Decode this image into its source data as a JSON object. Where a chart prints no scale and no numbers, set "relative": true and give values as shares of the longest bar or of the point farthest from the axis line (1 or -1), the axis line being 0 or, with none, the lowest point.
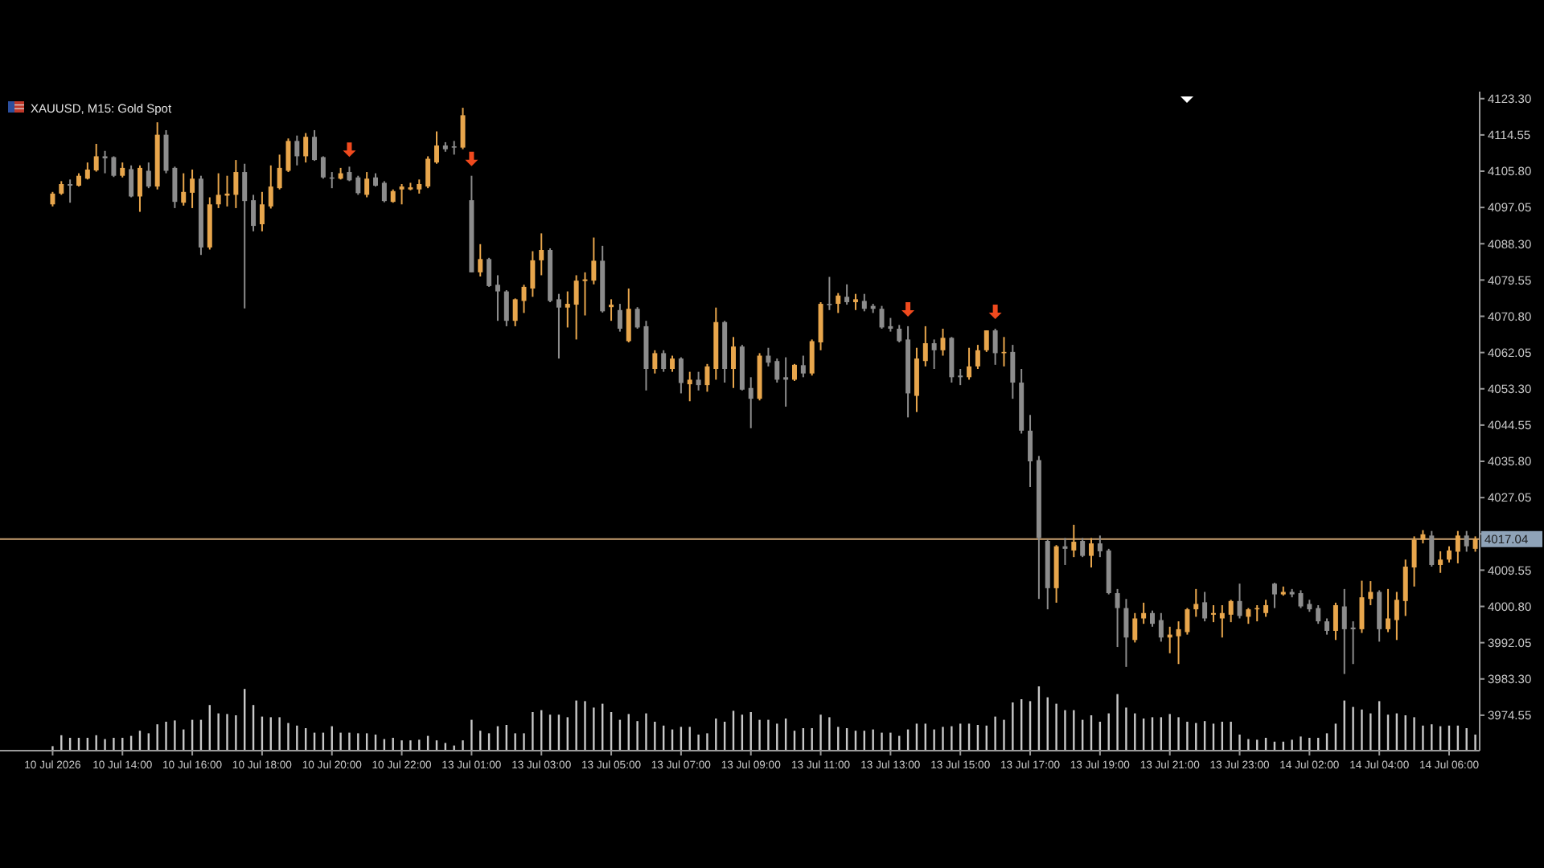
{
  "chart_data": [
    {
      "type": "candlestick",
      "title": "XAUUSD, M15: Gold Spot",
      "categories": [
        "10 Jul 2026",
        null,
        null,
        null,
        null,
        null,
        null,
        null,
        "10 Jul 14:00",
        null,
        null,
        null,
        null,
        null,
        null,
        null,
        "10 Jul 16:00",
        null,
        null,
        null,
        null,
        null,
        null,
        null,
        "10 Jul 18:00",
        null,
        null,
        null,
        null,
        null,
        null,
        null,
        "10 Jul 20:00",
        null,
        null,
        null,
        null,
        null,
        null,
        null,
        "10 Jul 22:00",
        null,
        null,
        null,
        null,
        null,
        null,
        null,
        "13 Jul 01:00",
        null,
        null,
        null,
        null,
        null,
        null,
        null,
        "13 Jul 03:00",
        null,
        null,
        null,
        null,
        null,
        null,
        null,
        "13 Jul 05:00",
        null,
        null,
        null,
        null,
        null,
        null,
        null,
        "13 Jul 07:00",
        null,
        null,
        null,
        null,
        null,
        null,
        null,
        "13 Jul 09:00",
        null,
        null,
        null,
        null,
        null,
        null,
        null,
        "13 Jul 11:00",
        null,
        null,
        null,
        null,
        null,
        null,
        null,
        "13 Jul 13:00",
        null,
        null,
        null,
        null,
        null,
        null,
        null,
        "13 Jul 15:00",
        null,
        null,
        null,
        null,
        null,
        null,
        null,
        "13 Jul 17:00",
        null,
        null,
        null,
        null,
        null,
        null,
        null,
        "13 Jul 19:00",
        null,
        null,
        null,
        null,
        null,
        null,
        null,
        "13 Jul 21:00",
        null,
        null,
        null,
        null,
        null,
        null,
        null,
        "13 Jul 23:00",
        null,
        null,
        null,
        null,
        null,
        null,
        null,
        "14 Jul 02:00",
        null,
        null,
        null,
        null,
        null,
        null,
        null,
        "14 Jul 04:00",
        null,
        null,
        null,
        null,
        null,
        null,
        null,
        "14 Jul 06:00",
        null,
        null,
        null
      ],
      "ohlc": [
        [
          4097.8,
          4100.8,
          4097.3,
          4100.4
        ],
        [
          4100.4,
          4103.4,
          4100.1,
          4102.7
        ],
        [
          4102.7,
          4103.8,
          4098.2,
          4102.3
        ],
        [
          4102.3,
          4105.3,
          4102.1,
          4104.7
        ],
        [
          4104.0,
          4107.9,
          4103.8,
          4106.2
        ],
        [
          4106.0,
          4112.4,
          4105.7,
          4109.4
        ],
        [
          4109.4,
          4110.7,
          4105.3,
          4108.9
        ],
        [
          4109.2,
          4109.4,
          4104.4,
          4104.7
        ],
        [
          4104.7,
          4107.9,
          4104.3,
          4106.6
        ],
        [
          4106.3,
          4107.2,
          4099.5,
          4099.7
        ],
        [
          4099.7,
          4107.2,
          4096.0,
          4106.6
        ],
        [
          4105.9,
          4107.9,
          4101.7,
          4102.1
        ],
        [
          4102.1,
          4117.6,
          4101.4,
          4114.6
        ],
        [
          4114.6,
          4115.7,
          4105.3,
          4105.9
        ],
        [
          4106.6,
          4106.9,
          4096.9,
          4098.4
        ],
        [
          4098.2,
          4105.3,
          4097.5,
          4100.8
        ],
        [
          4100.6,
          4106.2,
          4096.9,
          4104.0
        ],
        [
          4104.0,
          4104.7,
          4085.6,
          4087.4
        ],
        [
          4087.4,
          4099.5,
          4086.9,
          4097.8
        ],
        [
          4097.8,
          4105.3,
          4096.9,
          4100.1
        ],
        [
          4099.9,
          4104.7,
          4097.3,
          4100.4
        ],
        [
          4100.1,
          4108.5,
          4096.9,
          4105.6
        ],
        [
          4105.6,
          4107.6,
          4072.7,
          4098.6
        ],
        [
          4098.8,
          4100.1,
          4091.3,
          4092.6
        ],
        [
          4093.0,
          4100.8,
          4091.3,
          4097.8
        ],
        [
          4097.3,
          4107.2,
          4096.8,
          4102.1
        ],
        [
          4101.7,
          4109.8,
          4101.4,
          4106.6
        ],
        [
          4105.9,
          4113.7,
          4105.6,
          4113.1
        ],
        [
          4113.1,
          4114.4,
          4107.2,
          4109.4
        ],
        [
          4109.4,
          4115.0,
          4107.9,
          4114.1
        ],
        [
          4114.1,
          4115.7,
          4108.3,
          4108.5
        ],
        [
          4109.2,
          4109.4,
          4104.0,
          4104.3
        ],
        [
          4104.3,
          4105.6,
          4101.7,
          4104.0
        ],
        [
          4104.0,
          4106.6,
          4103.8,
          4105.3
        ],
        [
          4105.6,
          4106.9,
          4103.4,
          4103.6
        ],
        [
          4104.3,
          4104.7,
          4100.1,
          4100.5
        ],
        [
          4100.1,
          4105.6,
          4099.5,
          4104.0
        ],
        [
          4104.3,
          4105.3,
          4102.1,
          4102.3
        ],
        [
          4103.0,
          4103.4,
          4098.3,
          4098.6
        ],
        [
          4098.4,
          4101.4,
          4098.2,
          4101.0
        ],
        [
          4101.4,
          4102.7,
          4097.8,
          4102.1
        ],
        [
          4101.4,
          4103.0,
          4101.2,
          4101.9
        ],
        [
          4101.4,
          4103.8,
          4100.4,
          4102.7
        ],
        [
          4102.1,
          4109.4,
          4101.7,
          4108.8
        ],
        [
          4107.9,
          4115.4,
          4107.6,
          4112.0
        ],
        [
          4112.0,
          4112.8,
          4110.5,
          4111.1
        ],
        [
          4111.8,
          4113.1,
          4109.8,
          4111.5
        ],
        [
          4111.5,
          4121.1,
          4111.1,
          4119.3
        ],
        [
          4098.8,
          4104.7,
          4081.4,
          4081.4
        ],
        [
          4081.4,
          4088.2,
          4080.4,
          4084.6
        ],
        [
          4084.6,
          4084.9,
          4077.9,
          4078.1
        ],
        [
          4078.4,
          4080.7,
          4069.7,
          4076.8
        ],
        [
          4076.8,
          4077.1,
          4068.4,
          4069.7
        ],
        [
          4069.7,
          4075.1,
          4068.4,
          4074.9
        ],
        [
          4074.5,
          4078.4,
          4071.6,
          4077.9
        ],
        [
          4077.5,
          4086.5,
          4075.5,
          4084.3
        ],
        [
          4084.3,
          4090.8,
          4080.7,
          4086.8
        ],
        [
          4086.8,
          4087.2,
          4074.2,
          4074.5
        ],
        [
          4074.9,
          4076.2,
          4060.6,
          4072.9
        ],
        [
          4072.9,
          4076.8,
          4068.1,
          4073.8
        ],
        [
          4073.6,
          4080.7,
          4065.2,
          4079.4
        ],
        [
          4079.3,
          4081.4,
          4071.0,
          4079.7
        ],
        [
          4079.4,
          4089.8,
          4078.5,
          4084.2
        ],
        [
          4084.2,
          4087.8,
          4071.7,
          4072.0
        ],
        [
          4073.0,
          4074.9,
          4069.7,
          4073.6
        ],
        [
          4072.3,
          4073.8,
          4067.1,
          4067.8
        ],
        [
          4064.8,
          4077.5,
          4064.5,
          4072.6
        ],
        [
          4072.6,
          4073.0,
          4067.8,
          4068.1
        ],
        [
          4068.4,
          4069.7,
          4052.9,
          4058.1
        ],
        [
          4058.1,
          4062.6,
          4057.0,
          4061.9
        ],
        [
          4061.9,
          4062.6,
          4057.4,
          4058.1
        ],
        [
          4058.1,
          4061.3,
          4057.4,
          4060.6
        ],
        [
          4060.6,
          4060.9,
          4052.2,
          4054.7
        ],
        [
          4054.4,
          4057.4,
          4050.3,
          4055.5
        ],
        [
          4055.5,
          4057.4,
          4052.9,
          4054.2
        ],
        [
          4054.2,
          4059.3,
          4052.6,
          4058.7
        ],
        [
          4058.1,
          4072.9,
          4055.5,
          4069.4
        ],
        [
          4069.4,
          4069.7,
          4054.8,
          4058.1
        ],
        [
          4058.1,
          4065.8,
          4053.5,
          4063.5
        ],
        [
          4063.5,
          4063.9,
          4052.9,
          4053.1
        ],
        [
          4053.5,
          4056.1,
          4043.8,
          4050.9
        ],
        [
          4050.9,
          4061.9,
          4050.5,
          4061.3
        ],
        [
          4061.3,
          4063.2,
          4058.7,
          4059.6
        ],
        [
          4060.0,
          4060.6,
          4054.8,
          4055.5
        ],
        [
          4056.1,
          4060.9,
          4049.0,
          4055.5
        ],
        [
          4055.5,
          4059.3,
          4055.2,
          4059.1
        ],
        [
          4059.0,
          4061.3,
          4056.1,
          4057.0
        ],
        [
          4057.0,
          4065.2,
          4056.5,
          4064.8
        ],
        [
          4064.5,
          4074.2,
          4062.6,
          4073.8
        ],
        [
          4073.8,
          4080.3,
          4072.3,
          4073.6
        ],
        [
          4073.8,
          4076.4,
          4071.6,
          4075.8
        ],
        [
          4075.5,
          4078.5,
          4073.6,
          4074.2
        ],
        [
          4074.2,
          4076.2,
          4072.3,
          4074.9
        ],
        [
          4074.5,
          4076.2,
          4072.0,
          4072.6
        ],
        [
          4073.3,
          4073.8,
          4071.6,
          4072.6
        ],
        [
          4072.6,
          4073.3,
          4067.8,
          4068.1
        ],
        [
          4068.4,
          4070.4,
          4067.1,
          4067.8
        ],
        [
          4067.8,
          4068.7,
          4064.5,
          4064.8
        ],
        [
          4065.2,
          4068.4,
          4046.4,
          4052.2
        ],
        [
          4051.6,
          4063.2,
          4047.7,
          4060.6
        ],
        [
          4060.0,
          4068.4,
          4058.7,
          4064.3
        ],
        [
          4064.3,
          4065.2,
          4058.1,
          4062.6
        ],
        [
          4062.6,
          4067.8,
          4061.3,
          4065.6
        ],
        [
          4065.6,
          4065.8,
          4054.8,
          4056.1
        ],
        [
          4056.5,
          4058.1,
          4054.2,
          4056.1
        ],
        [
          4056.1,
          4063.2,
          4055.5,
          4058.7
        ],
        [
          4058.7,
          4063.9,
          4058.1,
          4062.6
        ],
        [
          4062.6,
          4067.4,
          4062.2,
          4067.4
        ],
        [
          4067.4,
          4067.8,
          4059.1,
          4061.9
        ],
        [
          4061.9,
          4065.8,
          4058.7,
          4062.2
        ],
        [
          4062.2,
          4063.9,
          4050.9,
          4054.8
        ],
        [
          4054.8,
          4058.1,
          4042.5,
          4043.2
        ],
        [
          4043.2,
          4047.0,
          4029.6,
          4035.8
        ],
        [
          4036.1,
          4037.1,
          4002.6,
          4017.3
        ],
        [
          4016.6,
          4016.9,
          4000.1,
          4005.2
        ],
        [
          4005.2,
          4015.6,
          4001.7,
          4015.3
        ],
        [
          4015.3,
          4017.3,
          4010.8,
          4014.7
        ],
        [
          4014.3,
          4020.5,
          4012.7,
          4016.4
        ],
        [
          4016.6,
          4017.3,
          4012.7,
          4013.0
        ],
        [
          4013.0,
          4017.3,
          4010.2,
          4016.0
        ],
        [
          4016.0,
          4017.9,
          4012.7,
          4014.1
        ],
        [
          4014.3,
          4014.7,
          4003.7,
          4004.0
        ],
        [
          4004.0,
          4005.0,
          3991.0,
          4000.4
        ],
        [
          4000.4,
          4002.6,
          3986.2,
          3993.3
        ],
        [
          3992.7,
          3999.2,
          3992.1,
          3997.9
        ],
        [
          3997.9,
          4001.7,
          3996.6,
          3999.2
        ],
        [
          3999.2,
          3999.8,
          3995.9,
          3996.6
        ],
        [
          3997.5,
          3999.2,
          3992.3,
          3993.3
        ],
        [
          3993.3,
          3995.9,
          3989.5,
          3994.0
        ],
        [
          3993.6,
          3997.2,
          3986.9,
          3995.3
        ],
        [
          3994.6,
          4000.4,
          3994.0,
          4000.1
        ],
        [
          4000.1,
          4005.0,
          3998.3,
          4001.4
        ],
        [
          4001.8,
          4004.3,
          3997.2,
          3997.9
        ],
        [
          3998.8,
          4001.1,
          3997.0,
          3999.2
        ],
        [
          3997.9,
          4001.1,
          3993.3,
          3999.2
        ],
        [
          3998.8,
          4002.4,
          3997.0,
          4002.1
        ],
        [
          4002.1,
          4006.3,
          3997.9,
          3998.5
        ],
        [
          3998.3,
          4000.4,
          3996.6,
          4000.1
        ],
        [
          4000.1,
          4001.1,
          3997.2,
          4000.4
        ],
        [
          3999.2,
          4002.4,
          3998.3,
          4001.1
        ],
        [
          4006.3,
          4006.5,
          4000.4,
          4003.7
        ],
        [
          4003.7,
          4005.6,
          4003.4,
          4004.3
        ],
        [
          4004.3,
          4005.0,
          4003.0,
          4003.7
        ],
        [
          4004.0,
          4004.7,
          4000.4,
          4000.8
        ],
        [
          4001.4,
          4002.4,
          3999.5,
          4000.1
        ],
        [
          4000.4,
          4001.1,
          3996.6,
          3997.2
        ],
        [
          3997.2,
          3997.9,
          3994.0,
          3994.9
        ],
        [
          3994.9,
          4001.7,
          3992.7,
          4001.1
        ],
        [
          4000.8,
          4005.0,
          3984.5,
          3995.3
        ],
        [
          3995.7,
          3997.2,
          3986.9,
          3995.3
        ],
        [
          3995.3,
          4007.0,
          3994.4,
          4003.0
        ],
        [
          4002.6,
          4006.9,
          4001.1,
          4004.3
        ],
        [
          4004.3,
          4004.7,
          3992.3,
          3995.3
        ],
        [
          3995.3,
          4005.0,
          3994.6,
          3997.9
        ],
        [
          3997.5,
          4004.3,
          3992.7,
          4002.4
        ],
        [
          4002.1,
          4012.1,
          3998.5,
          4010.4
        ],
        [
          4010.2,
          4017.7,
          4005.6,
          4016.9
        ],
        [
          4016.9,
          4019.2,
          4016.0,
          4018.2
        ],
        [
          4017.9,
          4019.0,
          4010.4,
          4010.8
        ],
        [
          4010.8,
          4014.1,
          4008.9,
          4012.1
        ],
        [
          4012.1,
          4015.3,
          4011.4,
          4014.3
        ],
        [
          4014.0,
          4019.0,
          4011.2,
          4017.9
        ],
        [
          4017.9,
          4019.0,
          4014.0,
          4015.3
        ],
        [
          4014.7,
          4017.7,
          4014.0,
          4017.0
        ]
      ],
      "colors": [
        "#e8a64c",
        "#e8a64c",
        "#8c8c8c",
        "#e8a64c",
        "#e8a64c",
        "#e8a64c",
        "#8c8c8c",
        "#8c8c8c",
        "#e8a64c",
        "#8c8c8c",
        "#e8a64c",
        "#8c8c8c",
        "#e8a64c",
        "#8c8c8c",
        "#8c8c8c",
        "#e8a64c",
        "#e8a64c",
        "#8c8c8c",
        "#e8a64c",
        "#e8a64c",
        "#e8a64c",
        "#e8a64c",
        "#8c8c8c",
        "#8c8c8c",
        "#e8a64c",
        "#e8a64c",
        "#e8a64c",
        "#e8a64c",
        "#8c8c8c",
        "#e8a64c",
        "#8c8c8c",
        "#8c8c8c",
        "#8c8c8c",
        "#e8a64c",
        "#8c8c8c",
        "#8c8c8c",
        "#e8a64c",
        "#8c8c8c",
        "#8c8c8c",
        "#e8a64c",
        "#e8a64c",
        "#e8a64c",
        "#e8a64c",
        "#e8a64c",
        "#e8a64c",
        "#8c8c8c",
        "#8c8c8c",
        "#e8a64c",
        "#8c8c8c",
        "#e8a64c",
        "#8c8c8c",
        "#8c8c8c",
        "#8c8c8c",
        "#e8a64c",
        "#e8a64c",
        "#e8a64c",
        "#e8a64c",
        "#8c8c8c",
        "#8c8c8c",
        "#e8a64c",
        "#e8a64c",
        "#e8a64c",
        "#e8a64c",
        "#8c8c8c",
        "#e8a64c",
        "#8c8c8c",
        "#e8a64c",
        "#8c8c8c",
        "#8c8c8c",
        "#e8a64c",
        "#8c8c8c",
        "#e8a64c",
        "#8c8c8c",
        "#e8a64c",
        "#8c8c8c",
        "#e8a64c",
        "#e8a64c",
        "#8c8c8c",
        "#e8a64c",
        "#8c8c8c",
        "#8c8c8c",
        "#e8a64c",
        "#8c8c8c",
        "#8c8c8c",
        "#8c8c8c",
        "#e8a64c",
        "#8c8c8c",
        "#e8a64c",
        "#e8a64c",
        "#8c8c8c",
        "#e8a64c",
        "#8c8c8c",
        "#e8a64c",
        "#8c8c8c",
        "#8c8c8c",
        "#8c8c8c",
        "#8c8c8c",
        "#8c8c8c",
        "#8c8c8c",
        "#e8a64c",
        "#e8a64c",
        "#8c8c8c",
        "#e8a64c",
        "#8c8c8c",
        "#8c8c8c",
        "#e8a64c",
        "#e8a64c",
        "#e8a64c",
        "#8c8c8c",
        "#e8a64c",
        "#8c8c8c",
        "#8c8c8c",
        "#8c8c8c",
        "#8c8c8c",
        "#8c8c8c",
        "#e8a64c",
        "#8c8c8c",
        "#e8a64c",
        "#8c8c8c",
        "#e8a64c",
        "#8c8c8c",
        "#8c8c8c",
        "#8c8c8c",
        "#8c8c8c",
        "#e8a64c",
        "#e8a64c",
        "#8c8c8c",
        "#8c8c8c",
        "#e8a64c",
        "#e8a64c",
        "#e8a64c",
        "#e8a64c",
        "#8c8c8c",
        "#e8a64c",
        "#e8a64c",
        "#e8a64c",
        "#8c8c8c",
        "#e8a64c",
        "#e8a64c",
        "#e8a64c",
        "#8c8c8c",
        "#e8a64c",
        "#8c8c8c",
        "#8c8c8c",
        "#8c8c8c",
        "#8c8c8c",
        "#8c8c8c",
        "#e8a64c",
        "#8c8c8c",
        "#8c8c8c",
        "#e8a64c",
        "#e8a64c",
        "#8c8c8c",
        "#e8a64c",
        "#e8a64c",
        "#e8a64c",
        "#e8a64c",
        "#e8a64c",
        "#8c8c8c",
        "#e8a64c",
        "#e8a64c",
        "#e8a64c",
        "#8c8c8c",
        "#e8a64c"
      ],
      "ylim": [
        3966,
        4125
      ],
      "yticks": [
        {
          "value": 4123.3,
          "label": "4123.30"
        },
        {
          "value": 4114.55,
          "label": "4114.55"
        },
        {
          "value": 4105.8,
          "label": "4105.80"
        },
        {
          "value": 4097.05,
          "label": "4097.05"
        },
        {
          "value": 4088.3,
          "label": "4088.30"
        },
        {
          "value": 4079.55,
          "label": "4079.55"
        },
        {
          "value": 4070.8,
          "label": "4070.80"
        },
        {
          "value": 4062.05,
          "label": "4062.05"
        },
        {
          "value": 4053.3,
          "label": "4053.30"
        },
        {
          "value": 4044.55,
          "label": "4044.55"
        },
        {
          "value": 4035.8,
          "label": "4035.80"
        },
        {
          "value": 4027.05,
          "label": "4027.05"
        },
        {
          "value": 4018.3,
          "label": null
        },
        {
          "value": 4009.55,
          "label": "4009.55"
        },
        {
          "value": 4000.8,
          "label": "4000.80"
        },
        {
          "value": 3992.05,
          "label": "3992.05"
        },
        {
          "value": 3983.3,
          "label": "3983.30"
        },
        {
          "value": 3974.55,
          "label": "3974.55"
        }
      ],
      "ref_lines": [
        {
          "axis": "y",
          "value": 4017.04,
          "label": "4017.04",
          "color": "#c8a070"
        }
      ]
    },
    {
      "type": "bar",
      "relative": true,
      "color": "#c8c8c8",
      "categories": [
        null,
        null,
        null,
        null,
        null,
        null,
        null,
        null,
        null,
        null,
        null,
        null,
        null,
        null,
        null,
        null,
        null,
        null,
        null,
        null,
        null,
        null,
        null,
        null,
        null,
        null,
        null,
        null,
        null,
        null,
        null,
        null,
        null,
        null,
        null,
        null,
        null,
        null,
        null,
        null,
        null,
        null,
        null,
        null,
        null,
        null,
        null,
        null,
        null,
        null,
        null,
        null,
        null,
        null,
        null,
        null,
        null,
        null,
        null,
        null,
        null,
        null,
        null,
        null,
        null,
        null,
        null,
        null,
        null,
        null,
        null,
        null,
        null,
        null,
        null,
        null,
        null,
        null,
        null,
        null,
        null,
        null,
        null,
        null,
        null,
        null,
        null,
        null,
        null,
        null,
        null,
        null,
        null,
        null,
        null,
        null,
        null,
        null,
        null,
        null,
        null,
        null,
        null,
        null,
        null,
        null,
        null,
        null,
        null,
        null,
        null,
        null,
        null,
        null,
        null,
        null,
        null,
        null,
        null,
        null,
        null,
        null,
        null,
        null,
        null,
        null,
        null,
        null,
        null,
        null,
        null,
        null,
        null,
        null,
        null,
        null,
        null,
        null,
        null,
        null,
        null,
        null,
        null,
        null,
        null,
        null,
        null,
        null,
        null,
        null,
        null,
        null,
        null,
        null,
        null,
        null,
        null,
        null,
        null,
        null,
        null,
        null,
        null,
        null
      ],
      "values": [
        0.07,
        0.24,
        0.2,
        0.2,
        0.2,
        0.24,
        0.18,
        0.2,
        0.2,
        0.23,
        0.31,
        0.27,
        0.41,
        0.45,
        0.47,
        0.33,
        0.48,
        0.48,
        0.71,
        0.58,
        0.57,
        0.55,
        0.96,
        0.71,
        0.53,
        0.52,
        0.52,
        0.43,
        0.39,
        0.35,
        0.28,
        0.28,
        0.38,
        0.28,
        0.28,
        0.27,
        0.27,
        0.25,
        0.18,
        0.2,
        0.16,
        0.16,
        0.17,
        0.23,
        0.16,
        0.12,
        0.08,
        0.16,
        0.48,
        0.31,
        0.27,
        0.38,
        0.4,
        0.27,
        0.27,
        0.6,
        0.63,
        0.56,
        0.56,
        0.52,
        0.78,
        0.77,
        0.67,
        0.73,
        0.6,
        0.48,
        0.57,
        0.46,
        0.58,
        0.45,
        0.39,
        0.33,
        0.37,
        0.37,
        0.25,
        0.27,
        0.5,
        0.45,
        0.62,
        0.56,
        0.6,
        0.48,
        0.48,
        0.42,
        0.5,
        0.31,
        0.35,
        0.35,
        0.56,
        0.52,
        0.37,
        0.35,
        0.31,
        0.31,
        0.33,
        0.28,
        0.28,
        0.23,
        0.33,
        0.42,
        0.42,
        0.33,
        0.37,
        0.38,
        0.42,
        0.42,
        0.4,
        0.39,
        0.53,
        0.48,
        0.75,
        0.8,
        0.77,
        1,
        0.83,
        0.73,
        0.63,
        0.63,
        0.48,
        0.55,
        0.45,
        0.58,
        0.88,
        0.67,
        0.58,
        0.5,
        0.52,
        0.52,
        0.57,
        0.52,
        0.45,
        0.43,
        0.46,
        0.42,
        0.45,
        0.45,
        0.25,
        0.18,
        0.17,
        0.2,
        0.14,
        0.14,
        0.17,
        0.22,
        0.2,
        0.2,
        0.27,
        0.42,
        0.78,
        0.68,
        0.64,
        0.58,
        0.77,
        0.56,
        0.58,
        0.55,
        0.52,
        0.39,
        0.41,
        0.38,
        0.39,
        0.39,
        0.35,
        0.25
      ]
    }
  ]
}
